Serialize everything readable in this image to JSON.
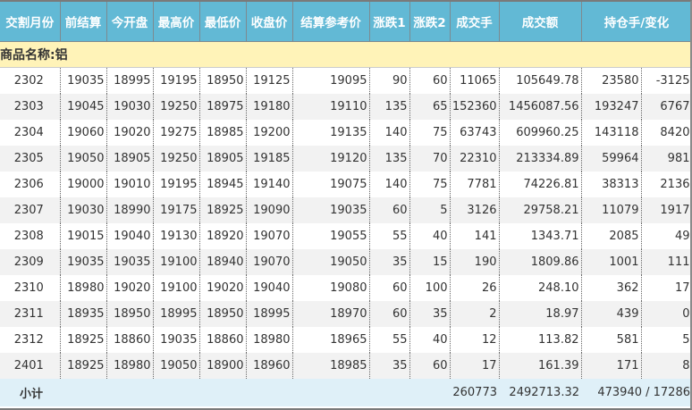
{
  "colors": {
    "header_bg": "#62b9d5",
    "group_bg": "#fff3b8",
    "alt_row_bg": "#f2f2f2",
    "subtotal_bg": "#dff0f8"
  },
  "headers": [
    "交割月份",
    "前结算",
    "今开盘",
    "最高价",
    "最低价",
    "收盘价",
    "结算参考价",
    "涨跌1",
    "涨跌2",
    "成交手",
    "成交额",
    "持仓手/变化"
  ],
  "group_label": "商品名称:铝",
  "rows": [
    [
      "2302",
      "19035",
      "18995",
      "19195",
      "18950",
      "19125",
      "19095",
      "90",
      "60",
      "11065",
      "105649.78",
      "23580",
      "-3125"
    ],
    [
      "2303",
      "19045",
      "19030",
      "19250",
      "18975",
      "19180",
      "19110",
      "135",
      "65",
      "152360",
      "1456087.56",
      "193247",
      "6767"
    ],
    [
      "2304",
      "19060",
      "19020",
      "19275",
      "18985",
      "19200",
      "19135",
      "140",
      "75",
      "63743",
      "609960.25",
      "143118",
      "8420"
    ],
    [
      "2305",
      "19050",
      "18905",
      "19250",
      "18905",
      "19185",
      "19120",
      "135",
      "70",
      "22310",
      "213334.89",
      "59964",
      "981"
    ],
    [
      "2306",
      "19000",
      "19010",
      "19195",
      "18945",
      "19140",
      "19075",
      "140",
      "75",
      "7781",
      "74226.81",
      "38313",
      "2136"
    ],
    [
      "2307",
      "19030",
      "18990",
      "19175",
      "18925",
      "19090",
      "19035",
      "60",
      "5",
      "3126",
      "29758.21",
      "11079",
      "1917"
    ],
    [
      "2308",
      "19015",
      "19040",
      "19130",
      "18920",
      "19070",
      "19055",
      "55",
      "40",
      "141",
      "1343.71",
      "2085",
      "49"
    ],
    [
      "2309",
      "19035",
      "19035",
      "19100",
      "18940",
      "19070",
      "19050",
      "35",
      "15",
      "190",
      "1809.86",
      "1001",
      "111"
    ],
    [
      "2310",
      "18980",
      "19020",
      "19100",
      "19020",
      "19040",
      "19080",
      "60",
      "100",
      "26",
      "248.10",
      "362",
      "17"
    ],
    [
      "2311",
      "18935",
      "18950",
      "18995",
      "18950",
      "18995",
      "18970",
      "60",
      "35",
      "2",
      "18.97",
      "439",
      "0"
    ],
    [
      "2312",
      "18925",
      "18860",
      "19035",
      "18860",
      "18980",
      "18965",
      "55",
      "40",
      "12",
      "113.82",
      "581",
      "5"
    ],
    [
      "2401",
      "18925",
      "18980",
      "19050",
      "18900",
      "18960",
      "18985",
      "35",
      "60",
      "17",
      "161.39",
      "171",
      "8"
    ]
  ],
  "subtotal": {
    "label": "小计",
    "volume": "260773",
    "turnover": "2492713.32",
    "open_interest": "473940 / 17286"
  }
}
